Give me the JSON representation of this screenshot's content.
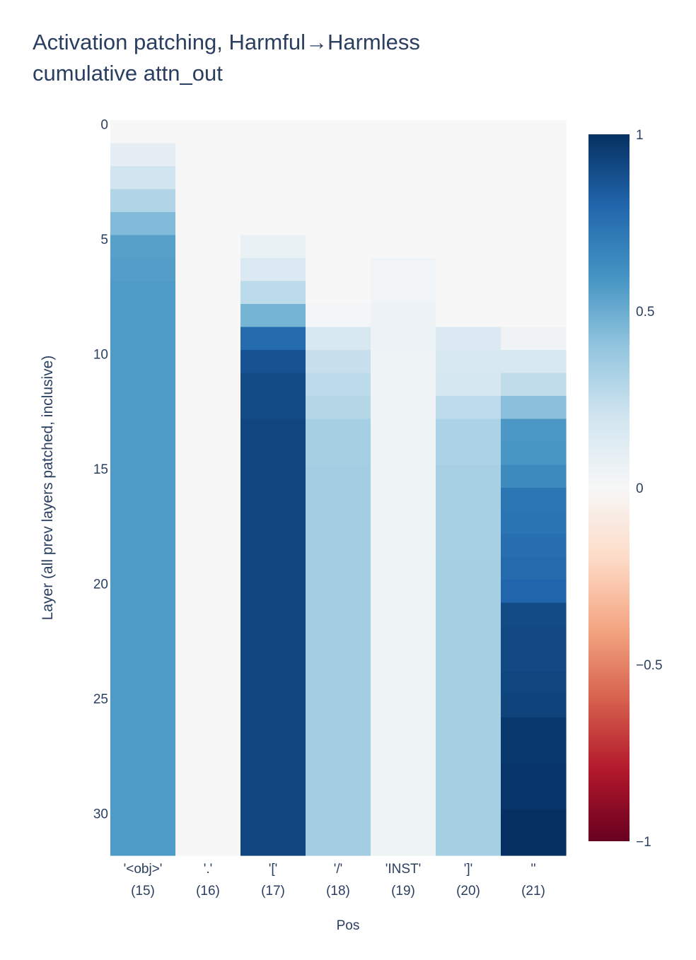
{
  "chart_data": {
    "type": "heatmap",
    "title_lines": [
      "Activation patching, Harmful→Harmless",
      "cumulative attn_out"
    ],
    "xlabel": "Pos",
    "ylabel": "Layer (all prev layers patched, inclusive)",
    "x_categories": [
      [
        "'<obj>'",
        "(15)"
      ],
      [
        "'.'",
        "(16)"
      ],
      [
        "'['",
        "(17)"
      ],
      [
        "'/'",
        "(18)"
      ],
      [
        "'INST'",
        "(19)"
      ],
      [
        "']'",
        "(20)"
      ],
      [
        "''",
        "(21)"
      ]
    ],
    "y_ticks": [
      0,
      5,
      10,
      15,
      20,
      25,
      30
    ],
    "y_range": [
      0,
      31
    ],
    "colorscale": "RdBu",
    "zrange": [
      -1,
      1
    ],
    "colorbar_ticks": [
      {
        "value": 1,
        "label": "1"
      },
      {
        "value": 0.5,
        "label": "0.5"
      },
      {
        "value": 0,
        "label": "0"
      },
      {
        "value": -0.5,
        "label": "−0.5"
      },
      {
        "value": -1,
        "label": "−1"
      }
    ],
    "z": [
      [
        0.0,
        0.0,
        0.0,
        0.0,
        0.0,
        0.0,
        0.0
      ],
      [
        0.1,
        0.0,
        0.0,
        0.0,
        0.0,
        0.0,
        0.0
      ],
      [
        0.2,
        0.0,
        0.0,
        0.0,
        0.0,
        0.0,
        0.0
      ],
      [
        0.3,
        0.0,
        0.0,
        0.0,
        0.0,
        0.0,
        0.0
      ],
      [
        0.44,
        0.0,
        0.0,
        0.0,
        0.0,
        0.0,
        0.0
      ],
      [
        0.55,
        0.0,
        0.07,
        0.0,
        0.0,
        0.0,
        0.0
      ],
      [
        0.56,
        0.0,
        0.15,
        0.0,
        0.03,
        0.0,
        0.0
      ],
      [
        0.57,
        0.0,
        0.27,
        0.0,
        0.03,
        0.0,
        0.0
      ],
      [
        0.57,
        0.0,
        0.47,
        0.02,
        0.06,
        0.0,
        0.0
      ],
      [
        0.57,
        0.0,
        0.78,
        0.17,
        0.06,
        0.15,
        0.04
      ],
      [
        0.57,
        0.0,
        0.87,
        0.23,
        0.05,
        0.17,
        0.17
      ],
      [
        0.57,
        0.0,
        0.9,
        0.27,
        0.05,
        0.18,
        0.25
      ],
      [
        0.57,
        0.0,
        0.9,
        0.29,
        0.05,
        0.26,
        0.42
      ],
      [
        0.57,
        0.0,
        0.92,
        0.34,
        0.05,
        0.32,
        0.58
      ],
      [
        0.57,
        0.0,
        0.92,
        0.34,
        0.05,
        0.32,
        0.59
      ],
      [
        0.57,
        0.0,
        0.92,
        0.35,
        0.05,
        0.33,
        0.64
      ],
      [
        0.57,
        0.0,
        0.92,
        0.35,
        0.05,
        0.33,
        0.73
      ],
      [
        0.57,
        0.0,
        0.92,
        0.35,
        0.05,
        0.33,
        0.74
      ],
      [
        0.57,
        0.0,
        0.92,
        0.35,
        0.05,
        0.33,
        0.76
      ],
      [
        0.57,
        0.0,
        0.92,
        0.35,
        0.05,
        0.34,
        0.78
      ],
      [
        0.57,
        0.0,
        0.92,
        0.35,
        0.05,
        0.34,
        0.8
      ],
      [
        0.57,
        0.0,
        0.92,
        0.35,
        0.05,
        0.34,
        0.9
      ],
      [
        0.57,
        0.0,
        0.92,
        0.35,
        0.05,
        0.34,
        0.91
      ],
      [
        0.57,
        0.0,
        0.92,
        0.35,
        0.05,
        0.34,
        0.91
      ],
      [
        0.57,
        0.0,
        0.92,
        0.35,
        0.05,
        0.34,
        0.92
      ],
      [
        0.57,
        0.0,
        0.92,
        0.35,
        0.05,
        0.34,
        0.93
      ],
      [
        0.57,
        0.0,
        0.92,
        0.35,
        0.05,
        0.34,
        0.97
      ],
      [
        0.57,
        0.0,
        0.92,
        0.35,
        0.05,
        0.34,
        0.97
      ],
      [
        0.57,
        0.0,
        0.92,
        0.35,
        0.05,
        0.34,
        0.98
      ],
      [
        0.57,
        0.0,
        0.92,
        0.35,
        0.05,
        0.34,
        0.98
      ],
      [
        0.57,
        0.0,
        0.92,
        0.35,
        0.05,
        0.34,
        1.0
      ],
      [
        0.57,
        0.0,
        0.92,
        0.35,
        0.05,
        0.34,
        1.0
      ]
    ]
  }
}
